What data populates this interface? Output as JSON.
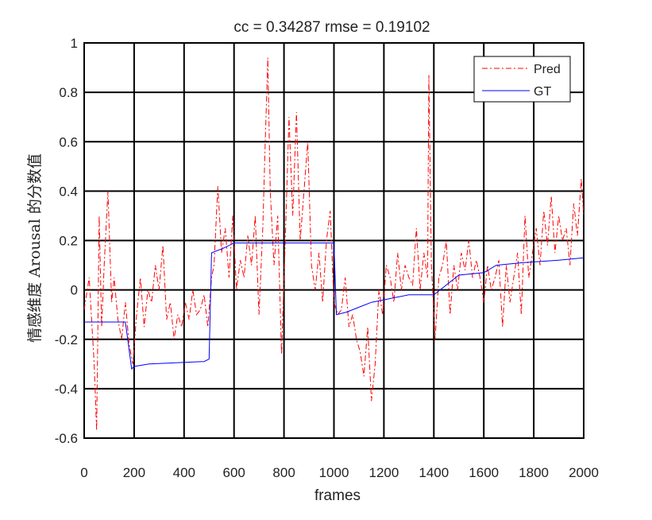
{
  "chart_data": {
    "type": "line",
    "title": "cc = 0.34287    rmse = 0.19102",
    "xlabel": "frames",
    "ylabel": "情感维度 Arousal 的分数值",
    "xlim": [
      0,
      2000
    ],
    "ylim": [
      -0.6,
      1.0
    ],
    "xticks": [
      "0",
      "200",
      "400",
      "600",
      "800",
      "1000",
      "1200",
      "1400",
      "1600",
      "1800",
      "2000"
    ],
    "yticks": [
      "1",
      "0.8",
      "0.6",
      "0.4",
      "0.2",
      "0",
      "-0.2",
      "-0.4",
      "-0.6"
    ],
    "grid": true,
    "legend_position": "top-right",
    "series": [
      {
        "name": "Pred",
        "color": "#ff0000",
        "style": "dash-dot",
        "x": [
          0,
          20,
          40,
          50,
          60,
          70,
          80,
          95,
          110,
          120,
          135,
          150,
          165,
          180,
          195,
          210,
          225,
          240,
          255,
          270,
          285,
          300,
          315,
          330,
          345,
          360,
          375,
          390,
          405,
          420,
          435,
          450,
          465,
          480,
          495,
          510,
          520,
          535,
          550,
          565,
          580,
          595,
          610,
          625,
          640,
          655,
          670,
          685,
          700,
          715,
          725,
          735,
          745,
          760,
          775,
          790,
          805,
          820,
          835,
          850,
          865,
          880,
          895,
          910,
          925,
          940,
          955,
          970,
          985,
          1000,
          1015,
          1030,
          1045,
          1060,
          1075,
          1090,
          1105,
          1120,
          1135,
          1150,
          1165,
          1180,
          1195,
          1210,
          1225,
          1240,
          1255,
          1270,
          1285,
          1300,
          1315,
          1330,
          1345,
          1360,
          1375,
          1380,
          1390,
          1405,
          1420,
          1435,
          1450,
          1465,
          1480,
          1495,
          1510,
          1525,
          1540,
          1555,
          1570,
          1585,
          1600,
          1615,
          1630,
          1645,
          1660,
          1675,
          1690,
          1705,
          1720,
          1735,
          1750,
          1765,
          1780,
          1795,
          1810,
          1825,
          1840,
          1855,
          1870,
          1885,
          1900,
          1915,
          1930,
          1945,
          1960,
          1975,
          1990,
          2000
        ],
        "y": [
          -0.08,
          0.05,
          -0.3,
          -0.57,
          0.3,
          -0.15,
          0.1,
          0.4,
          -0.05,
          0.05,
          -0.12,
          -0.2,
          -0.05,
          -0.22,
          -0.3,
          -0.1,
          0.05,
          -0.15,
          0.0,
          -0.05,
          0.1,
          0.0,
          0.18,
          -0.12,
          -0.05,
          -0.2,
          -0.1,
          -0.15,
          -0.05,
          -0.12,
          0.0,
          -0.1,
          -0.08,
          -0.02,
          -0.15,
          0.05,
          0.1,
          0.42,
          0.15,
          0.25,
          0.05,
          0.3,
          0.0,
          0.12,
          0.05,
          0.22,
          0.1,
          0.3,
          -0.1,
          0.25,
          0.6,
          0.94,
          0.4,
          0.1,
          0.3,
          -0.26,
          0.2,
          0.7,
          0.3,
          0.72,
          0.2,
          0.4,
          0.6,
          0.1,
          0.0,
          0.15,
          -0.05,
          0.2,
          0.32,
          -0.05,
          -0.1,
          -0.08,
          0.05,
          -0.15,
          -0.1,
          -0.2,
          -0.25,
          -0.35,
          -0.15,
          -0.45,
          -0.3,
          0.0,
          -0.1,
          0.1,
          0.05,
          -0.05,
          0.15,
          0.0,
          0.1,
          0.05,
          0.02,
          0.25,
          0.0,
          0.15,
          0.05,
          0.87,
          0.1,
          -0.2,
          0.05,
          0.1,
          0.2,
          -0.1,
          0.1,
          0.0,
          0.15,
          0.08,
          0.2,
          0.05,
          0.12,
          0.05,
          -0.05,
          0.1,
          0.0,
          0.05,
          0.12,
          -0.15,
          0.1,
          -0.05,
          0.05,
          0.15,
          -0.1,
          0.3,
          0.05,
          0.15,
          0.25,
          0.1,
          0.32,
          0.18,
          0.38,
          0.15,
          0.3,
          0.2,
          0.25,
          0.1,
          0.35,
          0.22,
          0.45,
          0.3
        ]
      },
      {
        "name": "GT",
        "color": "#0000ff",
        "style": "solid",
        "x": [
          0,
          165,
          190,
          200,
          260,
          480,
          500,
          510,
          560,
          600,
          1000,
          1010,
          1050,
          1100,
          1150,
          1200,
          1250,
          1300,
          1400,
          1500,
          1600,
          1650,
          1750,
          1900,
          2000
        ],
        "y": [
          -0.13,
          -0.13,
          -0.32,
          -0.31,
          -0.3,
          -0.29,
          -0.28,
          0.15,
          0.17,
          0.19,
          0.19,
          -0.1,
          -0.09,
          -0.07,
          -0.05,
          -0.04,
          -0.03,
          -0.02,
          -0.02,
          0.06,
          0.07,
          0.1,
          0.11,
          0.12,
          0.13
        ]
      }
    ]
  }
}
